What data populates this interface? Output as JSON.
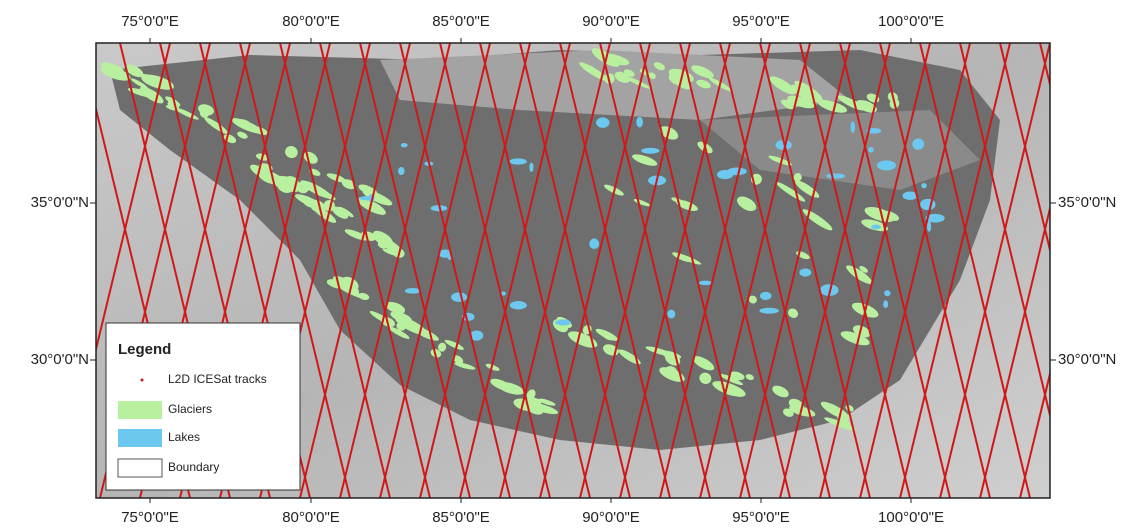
{
  "map": {
    "lon_labels": [
      "75°0'0\"E",
      "80°0'0\"E",
      "85°0'0\"E",
      "90°0'0\"E",
      "95°0'0\"E",
      "100°0'0\"E"
    ],
    "lat_labels": [
      "35°0'0\"N",
      "30°0'0\"N"
    ],
    "legend": {
      "title": "Legend",
      "items": [
        "L2D ICESat tracks",
        "Glaciers",
        "Lakes",
        "Boundary"
      ]
    }
  }
}
